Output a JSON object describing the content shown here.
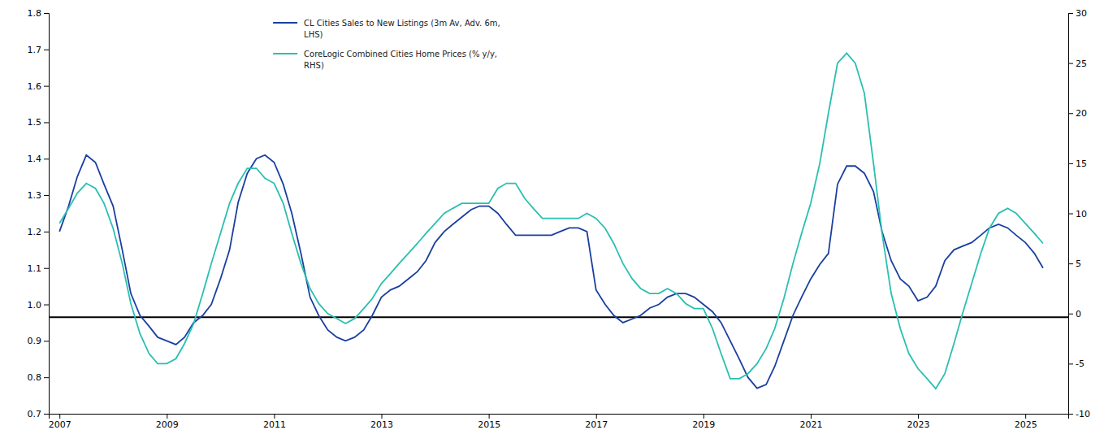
{
  "chart_data": {
    "type": "line",
    "x": [
      2007.0,
      2007.17,
      2007.33,
      2007.5,
      2007.67,
      2007.83,
      2008.0,
      2008.17,
      2008.33,
      2008.5,
      2008.67,
      2008.83,
      2009.0,
      2009.17,
      2009.33,
      2009.5,
      2009.67,
      2009.83,
      2010.0,
      2010.17,
      2010.33,
      2010.5,
      2010.67,
      2010.83,
      2011.0,
      2011.17,
      2011.33,
      2011.5,
      2011.67,
      2011.83,
      2012.0,
      2012.17,
      2012.33,
      2012.5,
      2012.67,
      2012.83,
      2013.0,
      2013.17,
      2013.33,
      2013.5,
      2013.67,
      2013.83,
      2014.0,
      2014.17,
      2014.33,
      2014.5,
      2014.67,
      2014.83,
      2015.0,
      2015.17,
      2015.33,
      2015.5,
      2015.67,
      2015.83,
      2016.0,
      2016.17,
      2016.33,
      2016.5,
      2016.67,
      2016.83,
      2017.0,
      2017.17,
      2017.33,
      2017.5,
      2017.67,
      2017.83,
      2018.0,
      2018.17,
      2018.33,
      2018.5,
      2018.67,
      2018.83,
      2019.0,
      2019.17,
      2019.33,
      2019.5,
      2019.67,
      2019.83,
      2020.0,
      2020.17,
      2020.33,
      2020.5,
      2020.67,
      2020.83,
      2021.0,
      2021.17,
      2021.33,
      2021.5,
      2021.67,
      2021.83,
      2022.0,
      2022.17,
      2022.33,
      2022.5,
      2022.67,
      2022.83,
      2023.0,
      2023.17,
      2023.33,
      2023.5,
      2023.67,
      2023.83,
      2024.0,
      2024.17,
      2024.33,
      2024.5,
      2024.67,
      2024.83,
      2025.0,
      2025.17,
      2025.33
    ],
    "xlim": [
      2006.8,
      2025.8
    ],
    "xticks": [
      2007,
      2009,
      2011,
      2013,
      2015,
      2017,
      2019,
      2021,
      2023,
      2025
    ],
    "ylim": [
      0.7,
      1.8
    ],
    "yticks": [
      0.7,
      0.8,
      0.9,
      {
        "value": 1.0,
        "label": "1.0"
      },
      1.1,
      1.2,
      1.3,
      1.4,
      1.5,
      1.6,
      1.7,
      1.8
    ],
    "y2lim": [
      -10,
      30
    ],
    "y2ticks": [
      -10,
      -5,
      0,
      5,
      10,
      15,
      20,
      25,
      30
    ],
    "grid": false,
    "legend": "upper left",
    "hline": {
      "y": 0.965,
      "color": "#000000"
    },
    "series": [
      {
        "name": "CL Cities Sales to New Listings (3m Av, Adv. 6m,\nLHS)",
        "color": "#1a3fa0",
        "values": [
          1.2,
          1.27,
          1.35,
          1.41,
          1.39,
          1.33,
          1.27,
          1.15,
          1.03,
          0.97,
          0.94,
          0.91,
          0.9,
          0.89,
          0.91,
          0.95,
          0.97,
          1.0,
          1.07,
          1.15,
          1.28,
          1.36,
          1.4,
          1.41,
          1.39,
          1.33,
          1.25,
          1.14,
          1.02,
          0.97,
          0.93,
          0.91,
          0.9,
          0.91,
          0.93,
          0.97,
          1.02,
          1.04,
          1.05,
          1.07,
          1.09,
          1.12,
          1.17,
          1.2,
          1.22,
          1.24,
          1.26,
          1.27,
          1.27,
          1.25,
          1.22,
          1.19,
          1.19,
          1.19,
          1.19,
          1.19,
          1.2,
          1.21,
          1.21,
          1.2,
          1.04,
          1.0,
          0.97,
          0.95,
          0.96,
          0.97,
          0.99,
          1.0,
          1.02,
          1.03,
          1.03,
          1.02,
          1.0,
          0.98,
          0.95,
          0.9,
          0.85,
          0.8,
          0.77,
          0.78,
          0.83,
          0.9,
          0.97,
          1.02,
          1.07,
          1.11,
          1.14,
          1.33,
          1.38,
          1.38,
          1.36,
          1.31,
          1.2,
          1.12,
          1.07,
          1.05,
          1.01,
          1.02,
          1.05,
          1.12,
          1.15,
          1.16,
          1.17,
          1.19,
          1.21,
          1.22,
          1.21,
          1.19,
          1.17,
          1.14,
          1.1
        ]
      },
      {
        "name": "CoreLogic Combined Cities Home Prices (% y/y,\nRHS)",
        "color": "#2abfb0",
        "axis": "y2",
        "values": [
          9.0,
          10.5,
          12.0,
          13.0,
          12.5,
          11.0,
          8.5,
          5.0,
          1.0,
          -2.0,
          -4.0,
          -5.0,
          -5.0,
          -4.5,
          -3.0,
          -1.0,
          2.0,
          5.0,
          8.0,
          11.0,
          13.0,
          14.5,
          14.5,
          13.5,
          13.0,
          11.0,
          8.0,
          5.0,
          2.5,
          1.0,
          0.0,
          -0.5,
          -1.0,
          -0.5,
          0.5,
          1.5,
          3.0,
          4.0,
          5.0,
          6.0,
          7.0,
          8.0,
          9.0,
          10.0,
          10.5,
          11.0,
          11.0,
          11.0,
          11.0,
          12.5,
          13.0,
          13.0,
          11.5,
          10.5,
          9.5,
          9.5,
          9.5,
          9.5,
          9.5,
          10.0,
          9.5,
          8.5,
          7.0,
          5.0,
          3.5,
          2.5,
          2.0,
          2.0,
          2.5,
          2.0,
          1.0,
          0.5,
          0.5,
          -1.5,
          -4.0,
          -6.5,
          -6.5,
          -6.0,
          -5.0,
          -3.5,
          -1.5,
          1.5,
          5.0,
          8.0,
          11.0,
          15.0,
          20.0,
          25.0,
          26.0,
          25.0,
          22.0,
          15.0,
          8.0,
          2.0,
          -1.5,
          -4.0,
          -5.5,
          -6.5,
          -7.5,
          -6.0,
          -3.0,
          0.0,
          3.0,
          6.0,
          8.5,
          10.0,
          10.5,
          10.0,
          9.0,
          8.0,
          7.0
        ]
      }
    ]
  }
}
